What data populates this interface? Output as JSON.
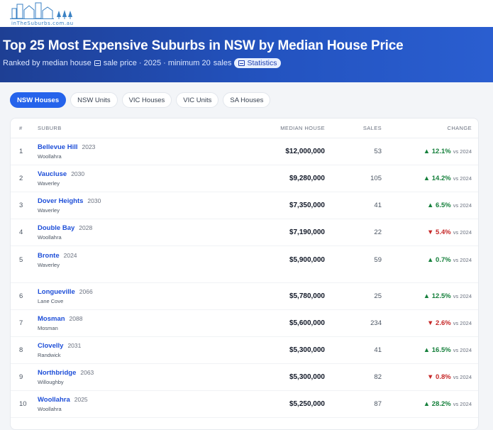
{
  "site": {
    "logo_text": "inTheSuburbs.com.au"
  },
  "hero": {
    "title": "Top 25 Most Expensive Suburbs in NSW by Median House Price",
    "subtitle_a": "Ranked by median house",
    "subtitle_b": "sale price · 2025 · minimum 20",
    "subtitle_c": "sales",
    "badge": "Statistics"
  },
  "tabs": [
    "NSW Houses",
    "NSW Units",
    "VIC Houses",
    "VIC Units",
    "SA Houses"
  ],
  "table": {
    "headers": {
      "rank": "#",
      "suburb": "SUBURB",
      "price": "MEDIAN HOUSE",
      "sales": "SALES",
      "change": "CHANGE"
    },
    "rows": [
      {
        "rank": "1",
        "name": "Bellevue Hill",
        "postcode": "2023",
        "lga": "Woollahra",
        "price": "$12,000,000",
        "sales": "53",
        "change": "▲ 12.1%",
        "dir": "up",
        "vs": "vs 2024"
      },
      {
        "rank": "2",
        "name": "Vaucluse",
        "postcode": "2030",
        "lga": "Waverley",
        "price": "$9,280,000",
        "sales": "105",
        "change": "▲ 14.2%",
        "dir": "up",
        "vs": "vs 2024"
      },
      {
        "rank": "3",
        "name": "Dover Heights",
        "postcode": "2030",
        "lga": "Waverley",
        "price": "$7,350,000",
        "sales": "41",
        "change": "▲ 6.5%",
        "dir": "up",
        "vs": "vs 2024"
      },
      {
        "rank": "4",
        "name": "Double Bay",
        "postcode": "2028",
        "lga": "Woollahra",
        "price": "$7,190,000",
        "sales": "22",
        "change": "▼ 5.4%",
        "dir": "down",
        "vs": "vs 2024"
      },
      {
        "rank": "5",
        "name": "Bronte",
        "postcode": "2024",
        "lga": "Waverley",
        "price": "$5,900,000",
        "sales": "59",
        "change": "▲ 0.7%",
        "dir": "up",
        "vs": "vs 2024"
      },
      {
        "rank": "6",
        "name": "Longueville",
        "postcode": "2066",
        "lga": "Lane Cove",
        "price": "$5,780,000",
        "sales": "25",
        "change": "▲ 12.5%",
        "dir": "up",
        "vs": "vs 2024"
      },
      {
        "rank": "7",
        "name": "Mosman",
        "postcode": "2088",
        "lga": "Mosman",
        "price": "$5,600,000",
        "sales": "234",
        "change": "▼ 2.6%",
        "dir": "down",
        "vs": "vs 2024"
      },
      {
        "rank": "8",
        "name": "Clovelly",
        "postcode": "2031",
        "lga": "Randwick",
        "price": "$5,300,000",
        "sales": "41",
        "change": "▲ 16.5%",
        "dir": "up",
        "vs": "vs 2024"
      },
      {
        "rank": "9",
        "name": "Northbridge",
        "postcode": "2063",
        "lga": "Willoughby",
        "price": "$5,300,000",
        "sales": "82",
        "change": "▼ 0.8%",
        "dir": "down",
        "vs": "vs 2024"
      },
      {
        "rank": "10",
        "name": "Woollahra",
        "postcode": "2025",
        "lga": "Woollahra",
        "price": "$5,250,000",
        "sales": "87",
        "change": "▲ 28.2%",
        "dir": "up",
        "vs": "vs 2024"
      }
    ]
  }
}
